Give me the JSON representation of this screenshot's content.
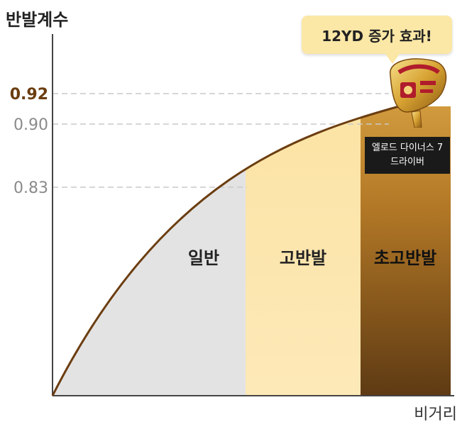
{
  "chart_data": {
    "type": "area",
    "ylabel": "반발계수",
    "xlabel": "비거리",
    "y_ticks": [
      {
        "value": 0.92,
        "label": "0.92",
        "emphasis": true
      },
      {
        "value": 0.9,
        "label": "0.90",
        "emphasis": false
      },
      {
        "value": 0.83,
        "label": "0.83",
        "emphasis": false
      }
    ],
    "regions": [
      {
        "name": "일반",
        "color": "#e3e3e3"
      },
      {
        "name": "고반발",
        "color": "#fde6a6"
      },
      {
        "name": "초고반발",
        "color": "#a0651a"
      }
    ]
  },
  "callout": {
    "text": "12YD 증가 효과!"
  },
  "product_tag": {
    "line1": "엘로드 다이너스 7",
    "line2": "드라이버"
  },
  "colors": {
    "curve": "#6b3d10",
    "accent_tick": "#6b3d10",
    "grid": "#bdbdbd"
  }
}
